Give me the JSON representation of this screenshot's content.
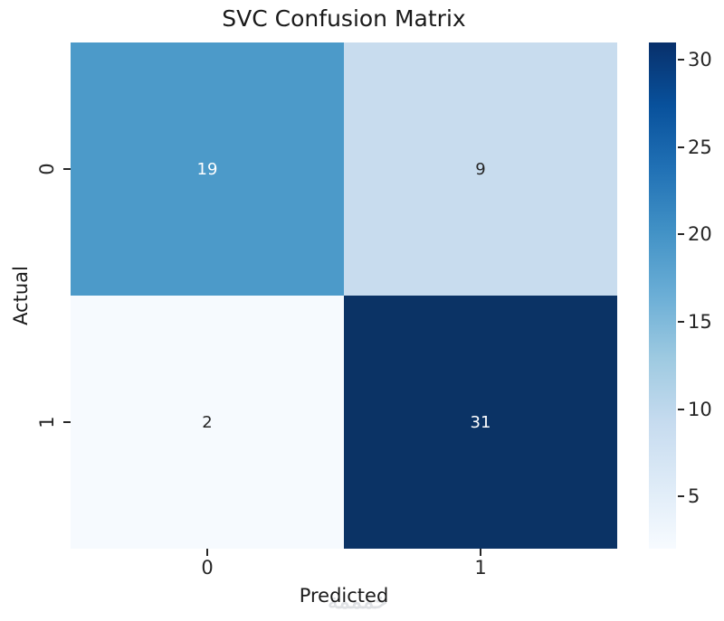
{
  "chart_data": {
    "type": "heatmap",
    "title": "SVC Confusion Matrix",
    "xlabel": "Predicted",
    "ylabel": "Actual",
    "x_tick_labels": [
      "0",
      "1"
    ],
    "y_tick_labels": [
      "0",
      "1"
    ],
    "matrix": [
      [
        19,
        9
      ],
      [
        2,
        31
      ]
    ],
    "vmin": 2,
    "vmax": 31,
    "colormap": "Blues",
    "grid": false,
    "cell_colors": [
      [
        "#4c9ac9",
        "#c8dcee"
      ],
      [
        "#f6fafe",
        "#0b3365"
      ]
    ],
    "cell_text_colors": [
      [
        "#ffffff",
        "#262626"
      ],
      [
        "#262626",
        "#ffffff"
      ]
    ],
    "colorbar": {
      "position": "right",
      "ticks": [
        5,
        10,
        15,
        20,
        25,
        30
      ],
      "gradient_stops": [
        "#f7fbff",
        "#deebf7",
        "#c6dbef",
        "#9ecae1",
        "#6baed6",
        "#4292c6",
        "#2171b5",
        "#08519c",
        "#08306b"
      ]
    }
  },
  "watermark": {
    "text": "خمممة"
  },
  "colors": {
    "background": "#ffffff",
    "title_text": "#1a1a1a",
    "tick_text": "#262626"
  }
}
